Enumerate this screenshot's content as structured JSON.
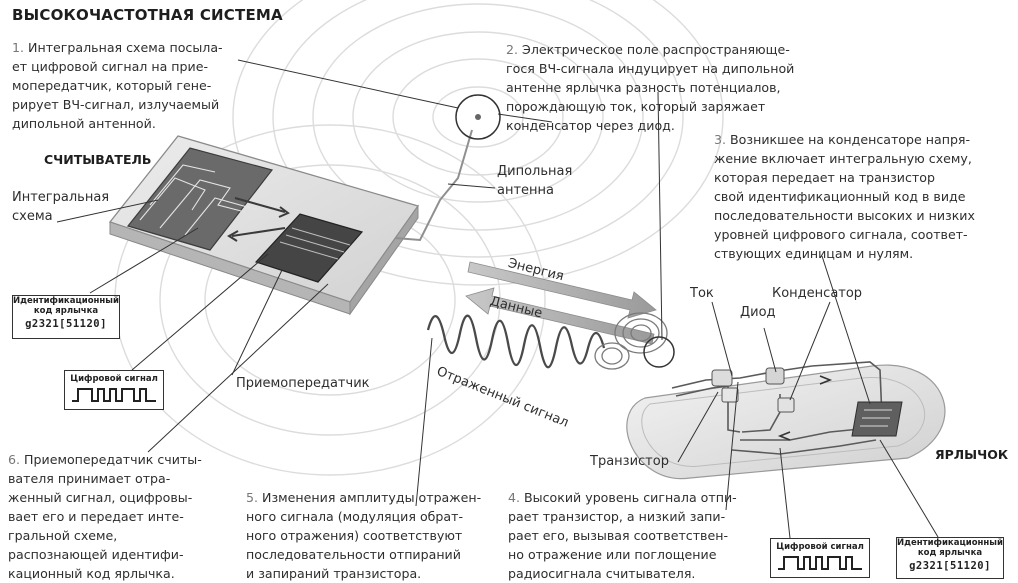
{
  "title": "ВЫСОКОЧАСТОТНАЯ СИСТЕМА",
  "steps": [
    {
      "num": "1.",
      "lines": [
        "Интегральная схема посыла-",
        "ет цифровой сигнал на прие-",
        "мопередатчик, который гене-",
        "рирует ВЧ-сигнал, излучаемый",
        "дипольной антенной."
      ]
    },
    {
      "num": "2.",
      "lines": [
        "Электрическое поле распространяюще-",
        "гося ВЧ-сигнала индуцирует на дипольной",
        "антенне ярлычка разность потенциалов,",
        "порождающую ток, который заряжает",
        "конденсатор через диод."
      ]
    },
    {
      "num": "3.",
      "lines": [
        "Возникшее на конденсаторе напря-",
        "жение включает интегральную схему,",
        "которая передает на транзистор",
        "свой идентификационный код в виде",
        "последовательности высоких и низких",
        "уровней цифрового сигнала, соответ-",
        "ствующих единицам и нулям."
      ]
    },
    {
      "num": "4.",
      "lines": [
        "Высокий уровень сигнала отпи-",
        "рает транзистор, а низкий запи-",
        "рает его, вызывая соответствен-",
        "но отражение или поглощение",
        "радиосигнала считывателя."
      ]
    },
    {
      "num": "5.",
      "lines": [
        "Изменения амплитуды отражен-",
        "ного сигнала (модуляция обрат-",
        "ного отражения) соответствуют",
        "последовательности отпираний",
        "и запираний транзистора."
      ]
    },
    {
      "num": "6.",
      "lines": [
        "Приемопередатчик считы-",
        "вателя принимает отра-",
        "женный сигнал, оцифровы-",
        "вает его и передает инте-",
        "гральной схеме,",
        "распознающей идентифи-",
        "кационный код ярлычка."
      ]
    }
  ],
  "labels": {
    "reader": "СЧИТЫВАТЕЛЬ",
    "tag": "ЯРЛЫЧОК",
    "ic": [
      "Интегральная",
      "схема"
    ],
    "dipole": [
      "Дипольная",
      "антенна"
    ],
    "transceiver": "Приемопередатчик",
    "current": "Ток",
    "diode": "Диод",
    "capacitor": "Конденсатор",
    "transistor": "Транзистор",
    "energy": "Энергия",
    "data": "Данные",
    "reflected": "Отраженный сигнал"
  },
  "boxes": {
    "id_left": {
      "title_lines": [
        "Идентификационный",
        "код ярлычка"
      ],
      "code": "g2321[51120]"
    },
    "digital_left": {
      "title": "Цифровой сигнал"
    },
    "digital_right": {
      "title": "Цифровой сигнал"
    },
    "id_right": {
      "title_lines": [
        "Идентификационный",
        "код ярлычка"
      ],
      "code": "g2321[51120]"
    }
  },
  "colors": {
    "text": "#2e2e2e",
    "line": "#444444",
    "device": "#bfbfbf",
    "chip": "#555555",
    "wave": "#d6d6d6"
  }
}
